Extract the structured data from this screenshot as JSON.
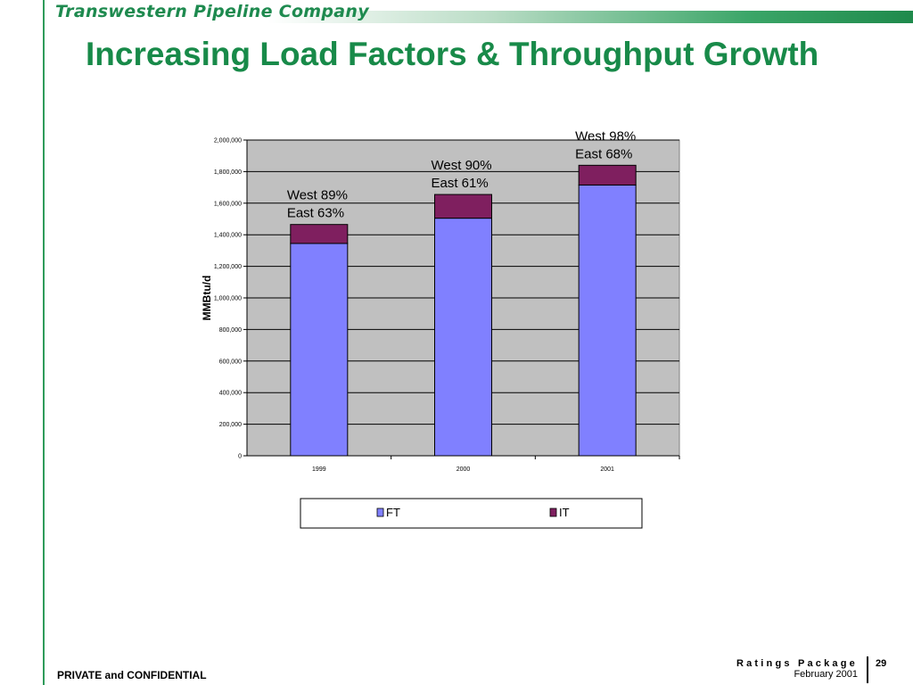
{
  "header": {
    "company": "Transwestern Pipeline Company",
    "title": "Increasing Load Factors & Throughput Growth"
  },
  "colors": {
    "brand_green": "#188a49",
    "ft": "#8080ff",
    "it": "#7f1f5f",
    "plot_bg": "#c0c0c0"
  },
  "chart_data": {
    "type": "bar",
    "stacked": true,
    "categories": [
      "1999",
      "2000",
      "2001"
    ],
    "series": [
      {
        "name": "FT",
        "values": [
          1345000,
          1505000,
          1715000
        ]
      },
      {
        "name": "IT",
        "values": [
          120000,
          150000,
          125000
        ]
      }
    ],
    "ylabel": "MMBtu/d",
    "ylim": [
      0,
      2000000
    ],
    "yticks": [
      "0",
      "200,000",
      "400,000",
      "600,000",
      "800,000",
      "1,000,000",
      "1,200,000",
      "1,400,000",
      "1,600,000",
      "1,800,000",
      "2,000,000"
    ],
    "annotations": [
      {
        "line1": "West 89%",
        "line2": "East 63%"
      },
      {
        "line1": "West 90%",
        "line2": "East 61%"
      },
      {
        "line1": "West 98%",
        "line2": "East 68%"
      }
    ],
    "grid": true,
    "legend": "bottom"
  },
  "footer": {
    "left": "PRIVATE and CONFIDENTIAL",
    "package": "Ratings Package",
    "date": "February 2001",
    "page": "29"
  }
}
